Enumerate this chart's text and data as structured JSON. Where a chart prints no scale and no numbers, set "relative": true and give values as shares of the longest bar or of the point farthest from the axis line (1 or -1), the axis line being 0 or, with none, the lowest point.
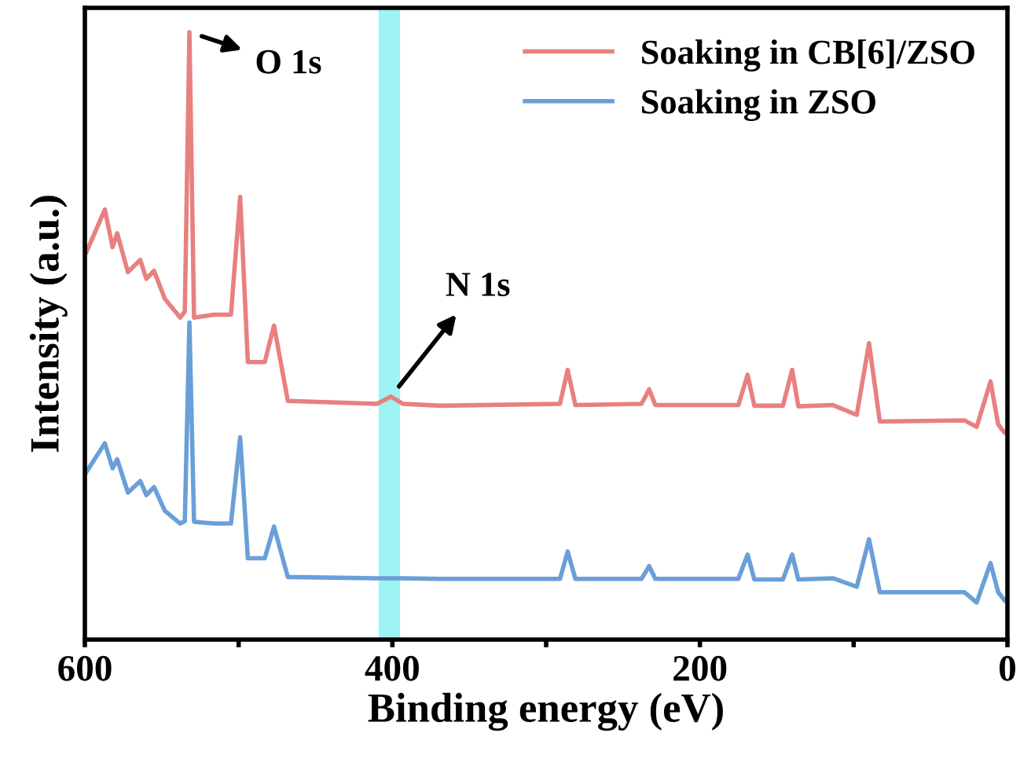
{
  "chart_data": {
    "type": "line",
    "relative": true,
    "xlabel": "Binding energy (eV)",
    "ylabel": "Intensity (a.u.)",
    "xlim": [
      600,
      0
    ],
    "xticks": [
      600,
      {
        "value": 500,
        "label": null
      },
      400,
      {
        "value": 300,
        "label": null
      },
      200,
      {
        "value": 100,
        "label": null
      },
      0
    ],
    "grid": false,
    "legend": "top right",
    "marker": "none",
    "line_style": "solid",
    "bands": [
      {
        "axis": "x",
        "from": 409,
        "to": 395,
        "color": "#9ef3f3"
      }
    ],
    "annotations": [
      {
        "text": "O 1s",
        "x": 532,
        "y": 1.0
      },
      {
        "text": "N 1s",
        "x": 401,
        "y": 0.4
      }
    ],
    "x": [
      599,
      587,
      582,
      579,
      572,
      564,
      560,
      555,
      548,
      538,
      535,
      532,
      529,
      516,
      505,
      499,
      494,
      483,
      477,
      468,
      410,
      401,
      393,
      369,
      291,
      286,
      281,
      238,
      233,
      229,
      175,
      169,
      164.6,
      146,
      140,
      136,
      113.5,
      98,
      90,
      83,
      28,
      20,
      11,
      6,
      2
    ],
    "series": [
      {
        "name": "Soaking in CB[6]/ZSO",
        "color": "#e88080",
        "values": [
          0.638,
          0.708,
          0.646,
          0.669,
          0.605,
          0.625,
          0.594,
          0.607,
          0.561,
          0.53,
          0.54,
          1.0,
          0.53,
          0.535,
          0.535,
          0.729,
          0.457,
          0.457,
          0.517,
          0.393,
          0.388,
          0.4,
          0.388,
          0.385,
          0.388,
          0.444,
          0.386,
          0.388,
          0.412,
          0.386,
          0.386,
          0.436,
          0.385,
          0.385,
          0.444,
          0.384,
          0.386,
          0.37,
          0.488,
          0.359,
          0.361,
          0.35,
          0.425,
          0.354,
          0.341
        ]
      },
      {
        "name": "Soaking in ZSO",
        "color": "#6a9fd8",
        "values": [
          0.276,
          0.323,
          0.282,
          0.297,
          0.242,
          0.261,
          0.238,
          0.251,
          0.212,
          0.191,
          0.195,
          0.522,
          0.194,
          0.191,
          0.191,
          0.333,
          0.134,
          0.134,
          0.186,
          0.103,
          0.101,
          0.101,
          0.101,
          0.1,
          0.1,
          0.145,
          0.1,
          0.1,
          0.121,
          0.1,
          0.1,
          0.14,
          0.099,
          0.099,
          0.14,
          0.099,
          0.101,
          0.087,
          0.165,
          0.078,
          0.078,
          0.061,
          0.126,
          0.078,
          0.065
        ]
      }
    ]
  }
}
